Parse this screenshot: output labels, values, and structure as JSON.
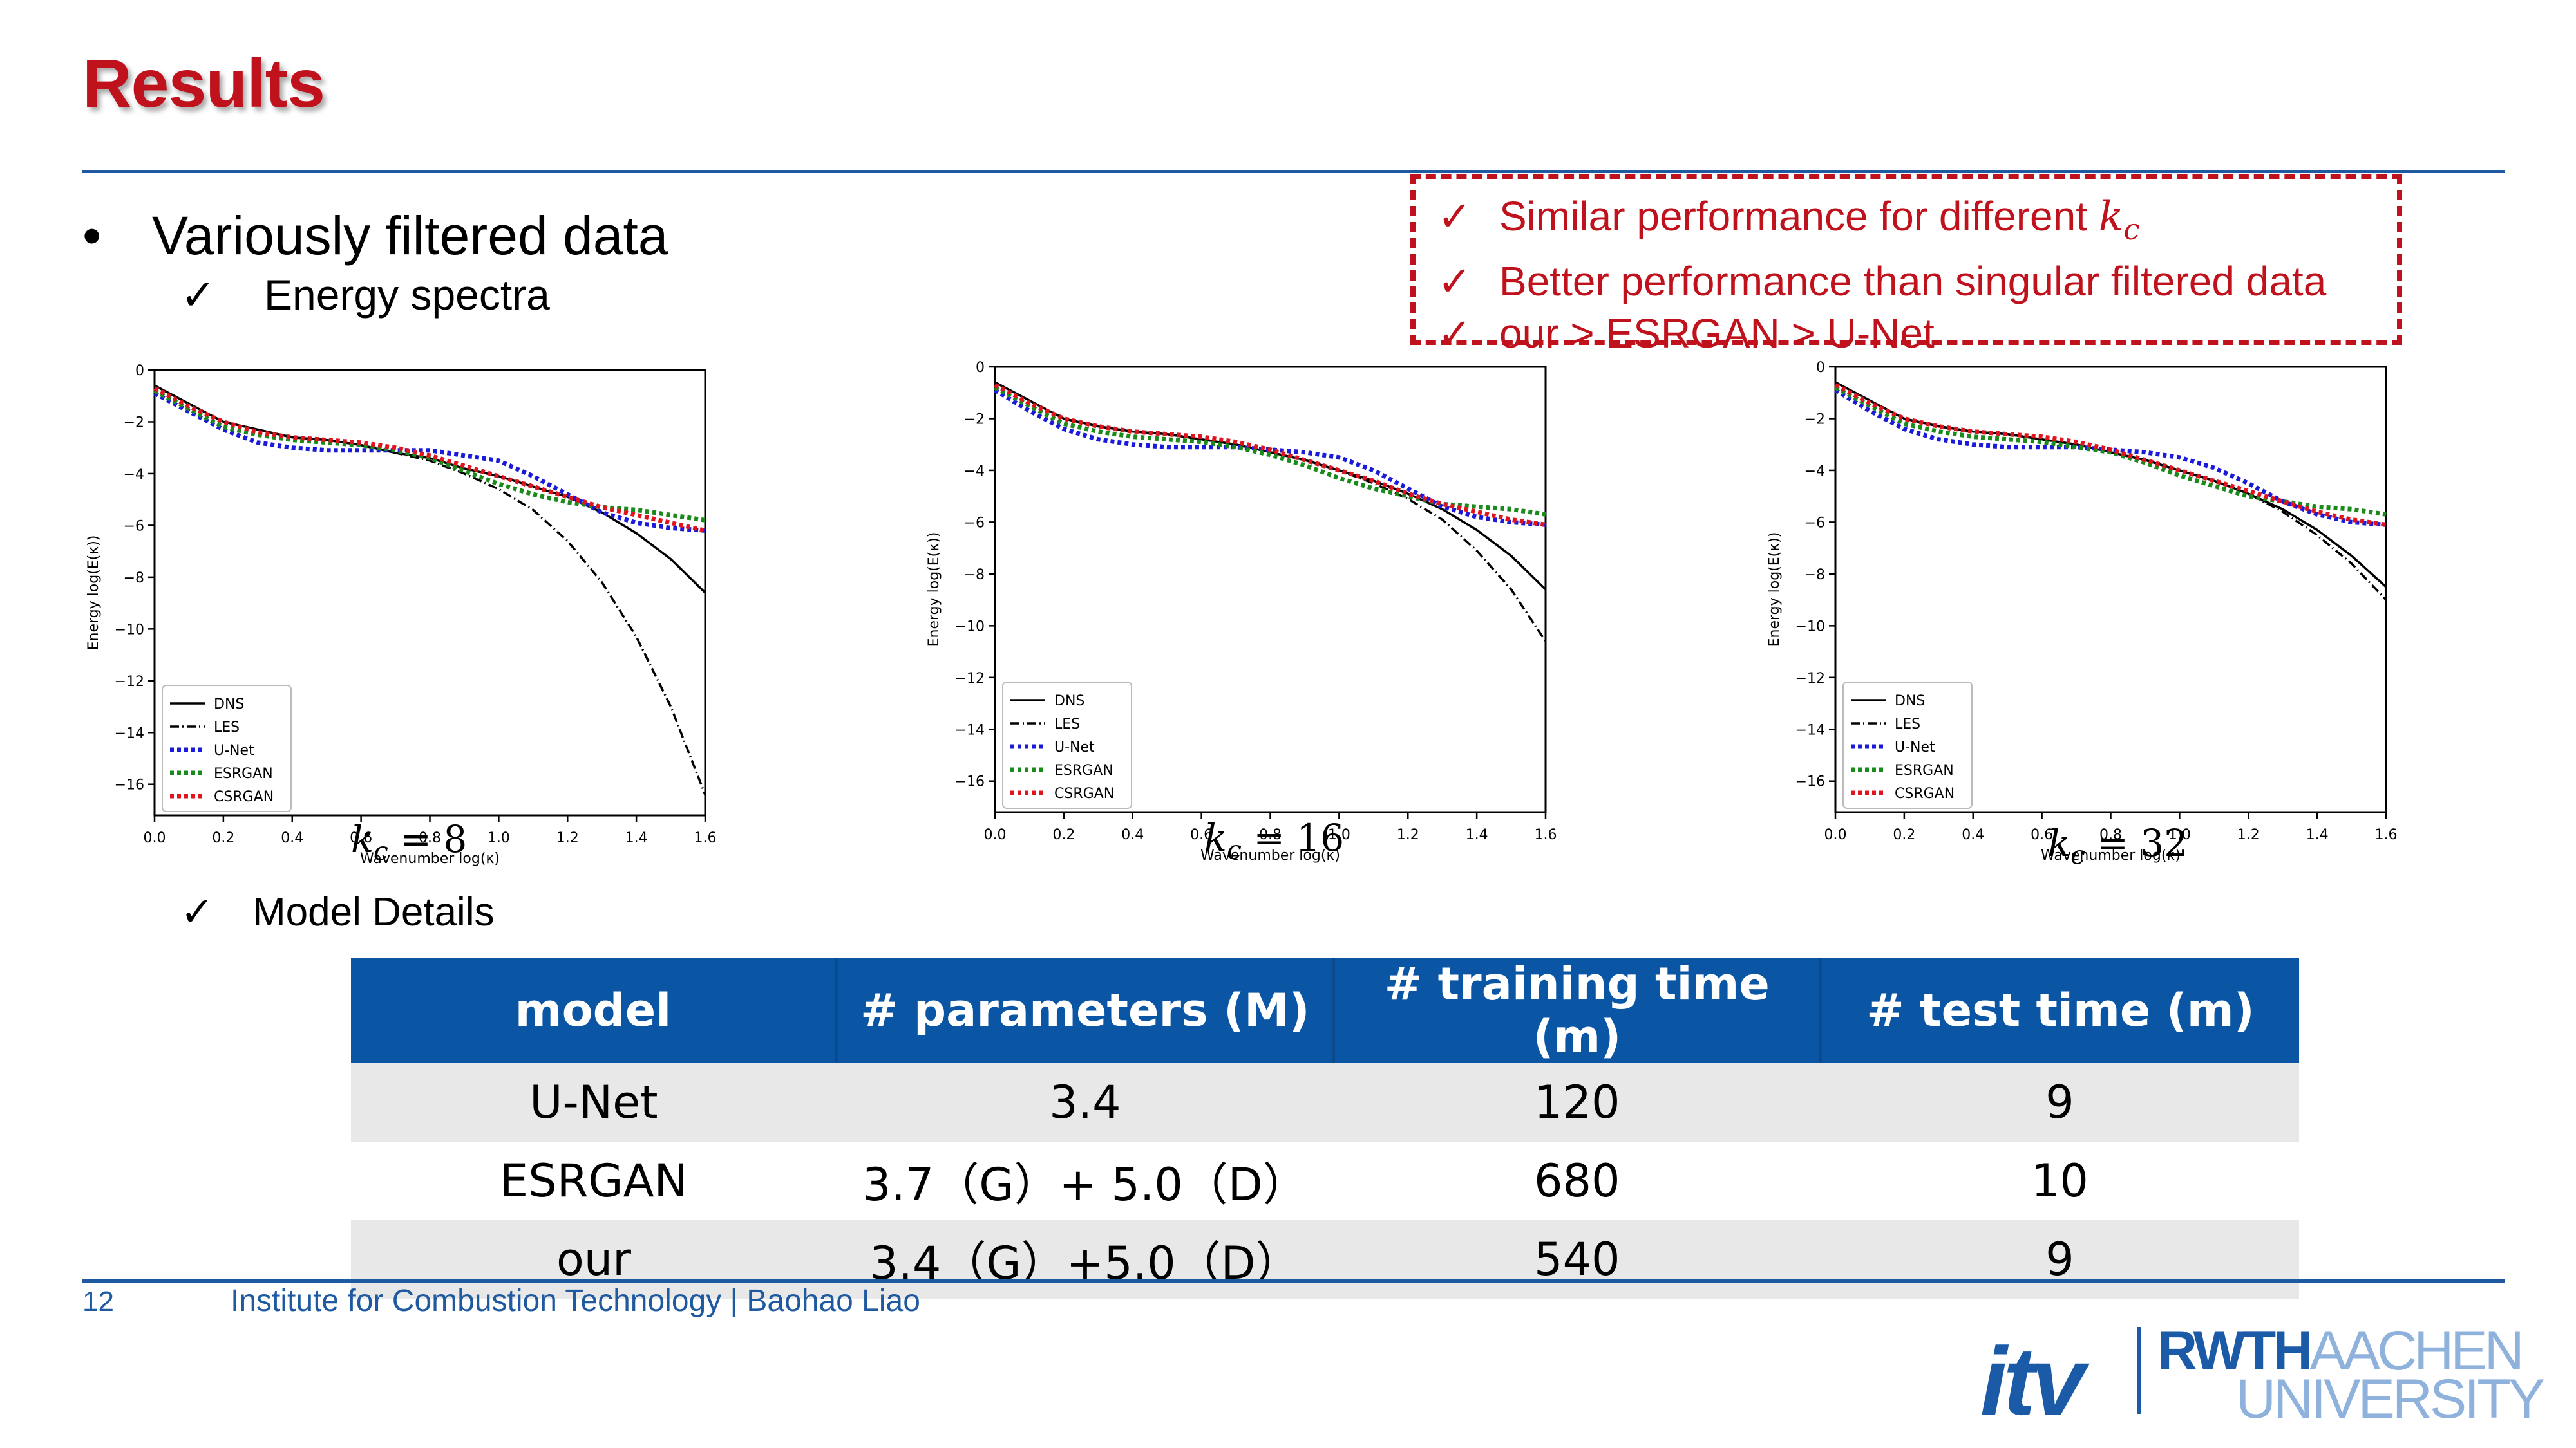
{
  "slide": {
    "title": "Results",
    "bullet": "Variously filtered data",
    "check_mark": "✓",
    "bullet_mark": "•",
    "sub_energy": "Energy spectra",
    "sub_model": "Model Details",
    "callout": {
      "items": [
        {
          "text": "Similar performance for different ",
          "math": "k_c"
        },
        {
          "text": "Better performance than singular filtered data",
          "math": ""
        },
        {
          "text": "our > ESRGAN > U-Net",
          "math": ""
        }
      ],
      "color": "#c0121c"
    },
    "accent_color": "#1f5aa0",
    "title_color": "#c0121c"
  },
  "captions": [
    "k_c = 8",
    "k_c = 16",
    "k_c = 32"
  ],
  "chart_data": [
    {
      "type": "line",
      "xlabel": "Wavenumber log(κ)",
      "ylabel": "Energy log(E(κ))",
      "xlim": [
        0.0,
        1.6
      ],
      "ylim": [
        -17.2,
        0
      ],
      "xticks": [
        "0.0",
        "0.2",
        "0.4",
        "0.6",
        "0.8",
        "1.0",
        "1.2",
        "1.4",
        "1.6"
      ],
      "yticks": [
        "0",
        "−2",
        "−4",
        "−6",
        "−8",
        "−10",
        "−12",
        "−14",
        "−16"
      ],
      "legend_position": "lower-left",
      "x": [
        0.0,
        0.1,
        0.2,
        0.3,
        0.4,
        0.5,
        0.6,
        0.7,
        0.8,
        0.9,
        1.0,
        1.1,
        1.2,
        1.3,
        1.4,
        1.5,
        1.6
      ],
      "series": [
        {
          "name": "DNS",
          "color": "#000000",
          "style": "solid",
          "values": [
            -0.6,
            -1.3,
            -2.0,
            -2.3,
            -2.6,
            -2.7,
            -2.9,
            -3.2,
            -3.4,
            -3.8,
            -4.1,
            -4.5,
            -4.9,
            -5.5,
            -6.3,
            -7.3,
            -8.6
          ]
        },
        {
          "name": "LES",
          "color": "#000000",
          "style": "dashdot",
          "values": [
            -0.6,
            -1.3,
            -2.0,
            -2.3,
            -2.6,
            -2.7,
            -2.9,
            -3.2,
            -3.5,
            -4.0,
            -4.6,
            -5.4,
            -6.6,
            -8.2,
            -10.3,
            -13.0,
            -16.4
          ]
        },
        {
          "name": "U-Net",
          "color": "#1a1adb",
          "style": "dotted",
          "values": [
            -0.9,
            -1.6,
            -2.3,
            -2.8,
            -3.0,
            -3.1,
            -3.1,
            -3.1,
            -3.1,
            -3.3,
            -3.5,
            -4.1,
            -4.8,
            -5.5,
            -5.9,
            -6.1,
            -6.2
          ]
        },
        {
          "name": "ESRGAN",
          "color": "#1a8a1a",
          "style": "dotted",
          "values": [
            -0.8,
            -1.5,
            -2.2,
            -2.5,
            -2.7,
            -2.8,
            -2.9,
            -3.1,
            -3.4,
            -3.9,
            -4.4,
            -4.8,
            -5.1,
            -5.3,
            -5.4,
            -5.6,
            -5.8
          ]
        },
        {
          "name": "CSRGAN",
          "color": "#e0141e",
          "style": "dotted",
          "values": [
            -0.7,
            -1.4,
            -2.0,
            -2.4,
            -2.6,
            -2.7,
            -2.8,
            -3.0,
            -3.3,
            -3.7,
            -4.1,
            -4.5,
            -4.9,
            -5.3,
            -5.6,
            -5.9,
            -6.2
          ]
        }
      ]
    },
    {
      "type": "line",
      "xlabel": "Wavenumber log(κ)",
      "ylabel": "Energy log(E(κ))",
      "xlim": [
        0.0,
        1.6
      ],
      "ylim": [
        -17.2,
        0
      ],
      "xticks": [
        "0.0",
        "0.2",
        "0.4",
        "0.6",
        "0.8",
        "1.0",
        "1.2",
        "1.4",
        "1.6"
      ],
      "yticks": [
        "0",
        "−2",
        "−4",
        "−6",
        "−8",
        "−10",
        "−12",
        "−14",
        "−16"
      ],
      "legend_position": "lower-left",
      "x": [
        0.0,
        0.1,
        0.2,
        0.3,
        0.4,
        0.5,
        0.6,
        0.7,
        0.8,
        0.9,
        1.0,
        1.1,
        1.2,
        1.3,
        1.4,
        1.5,
        1.6
      ],
      "series": [
        {
          "name": "DNS",
          "color": "#000000",
          "style": "solid",
          "values": [
            -0.6,
            -1.3,
            -2.0,
            -2.3,
            -2.5,
            -2.6,
            -2.8,
            -3.0,
            -3.3,
            -3.6,
            -4.0,
            -4.4,
            -4.9,
            -5.5,
            -6.3,
            -7.3,
            -8.6
          ]
        },
        {
          "name": "LES",
          "color": "#000000",
          "style": "dashdot",
          "values": [
            -0.6,
            -1.3,
            -2.0,
            -2.3,
            -2.5,
            -2.6,
            -2.8,
            -3.0,
            -3.3,
            -3.6,
            -4.0,
            -4.5,
            -5.1,
            -5.9,
            -7.1,
            -8.6,
            -10.6
          ]
        },
        {
          "name": "U-Net",
          "color": "#1a1adb",
          "style": "dotted",
          "values": [
            -0.9,
            -1.7,
            -2.4,
            -2.8,
            -3.0,
            -3.1,
            -3.1,
            -3.1,
            -3.2,
            -3.3,
            -3.5,
            -4.0,
            -4.7,
            -5.4,
            -5.8,
            -6.0,
            -6.1
          ]
        },
        {
          "name": "ESRGAN",
          "color": "#1a8a1a",
          "style": "dotted",
          "values": [
            -0.8,
            -1.5,
            -2.2,
            -2.5,
            -2.7,
            -2.8,
            -2.9,
            -3.1,
            -3.4,
            -3.8,
            -4.3,
            -4.7,
            -5.0,
            -5.3,
            -5.4,
            -5.5,
            -5.7
          ]
        },
        {
          "name": "CSRGAN",
          "color": "#e0141e",
          "style": "dotted",
          "values": [
            -0.7,
            -1.4,
            -2.0,
            -2.3,
            -2.5,
            -2.6,
            -2.7,
            -2.9,
            -3.2,
            -3.6,
            -4.0,
            -4.4,
            -4.9,
            -5.3,
            -5.6,
            -5.9,
            -6.1
          ]
        }
      ]
    },
    {
      "type": "line",
      "xlabel": "Wavenumber log(κ)",
      "ylabel": "Energy log(E(κ))",
      "xlim": [
        0.0,
        1.6
      ],
      "ylim": [
        -17.2,
        0
      ],
      "xticks": [
        "0.0",
        "0.2",
        "0.4",
        "0.6",
        "0.8",
        "1.0",
        "1.2",
        "1.4",
        "1.6"
      ],
      "yticks": [
        "0",
        "−2",
        "−4",
        "−6",
        "−8",
        "−10",
        "−12",
        "−14",
        "−16"
      ],
      "legend_position": "lower-left",
      "x": [
        0.0,
        0.1,
        0.2,
        0.3,
        0.4,
        0.5,
        0.6,
        0.7,
        0.8,
        0.9,
        1.0,
        1.1,
        1.2,
        1.3,
        1.4,
        1.5,
        1.6
      ],
      "series": [
        {
          "name": "DNS",
          "color": "#000000",
          "style": "solid",
          "values": [
            -0.6,
            -1.3,
            -2.0,
            -2.3,
            -2.5,
            -2.6,
            -2.8,
            -3.0,
            -3.3,
            -3.6,
            -4.0,
            -4.4,
            -4.9,
            -5.5,
            -6.3,
            -7.3,
            -8.5
          ]
        },
        {
          "name": "LES",
          "color": "#000000",
          "style": "dashdot",
          "values": [
            -0.6,
            -1.3,
            -2.0,
            -2.3,
            -2.5,
            -2.6,
            -2.8,
            -3.0,
            -3.3,
            -3.6,
            -4.0,
            -4.4,
            -4.9,
            -5.6,
            -6.5,
            -7.6,
            -9.0
          ]
        },
        {
          "name": "U-Net",
          "color": "#1a1adb",
          "style": "dotted",
          "values": [
            -0.9,
            -1.7,
            -2.4,
            -2.8,
            -3.0,
            -3.1,
            -3.1,
            -3.1,
            -3.2,
            -3.3,
            -3.5,
            -3.9,
            -4.5,
            -5.2,
            -5.7,
            -6.0,
            -6.1
          ]
        },
        {
          "name": "ESRGAN",
          "color": "#1a8a1a",
          "style": "dotted",
          "values": [
            -0.8,
            -1.5,
            -2.2,
            -2.5,
            -2.7,
            -2.8,
            -2.9,
            -3.1,
            -3.3,
            -3.7,
            -4.2,
            -4.6,
            -5.0,
            -5.2,
            -5.4,
            -5.5,
            -5.7
          ]
        },
        {
          "name": "CSRGAN",
          "color": "#e0141e",
          "style": "dotted",
          "values": [
            -0.7,
            -1.4,
            -2.0,
            -2.3,
            -2.5,
            -2.6,
            -2.7,
            -2.9,
            -3.2,
            -3.6,
            -4.0,
            -4.4,
            -4.8,
            -5.2,
            -5.6,
            -5.9,
            -6.1
          ]
        }
      ]
    }
  ],
  "table": {
    "headers": [
      "model",
      "# parameters (M)",
      "# training time (m)",
      "# test time (m)"
    ],
    "rows": [
      [
        "U-Net",
        "3.4",
        "120",
        "9"
      ],
      [
        "ESRGAN",
        "3.7（G）+ 5.0（D）",
        "680",
        "10"
      ],
      [
        "our",
        "3.4（G）+5.0（D）",
        "540",
        "9"
      ]
    ],
    "header_color": "#0b56a4",
    "stripe_color": "#e8e8e8"
  },
  "footer": {
    "page_number": "12",
    "text": "Institute for Combustion Technology | Baohao Liao"
  },
  "logos": {
    "itv": "itv",
    "rwth": "RWTH",
    "aachen": "AACHEN",
    "university": "UNIVERSITY",
    "brand_color": "#1b5aa6",
    "light_color": "#8fb2dc"
  }
}
